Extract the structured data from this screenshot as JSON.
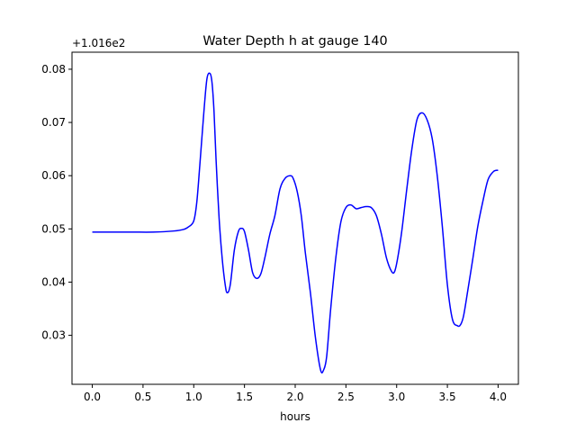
{
  "chart_data": {
    "type": "line",
    "title": "Water Depth h at gauge 140",
    "xlabel": "hours",
    "ylabel": "",
    "offset_label": "+1.016e2",
    "xlim": [
      -0.2,
      4.2
    ],
    "ylim": [
      0.0208,
      0.0832
    ],
    "x_ticks": [
      0.0,
      0.5,
      1.0,
      1.5,
      2.0,
      2.5,
      3.0,
      3.5,
      4.0
    ],
    "x_tick_labels": [
      "0.0",
      "0.5",
      "1.0",
      "1.5",
      "2.0",
      "2.5",
      "3.0",
      "3.5",
      "4.0"
    ],
    "y_ticks": [
      0.03,
      0.04,
      0.05,
      0.06,
      0.07,
      0.08
    ],
    "y_tick_labels": [
      "0.03",
      "0.04",
      "0.05",
      "0.06",
      "0.07",
      "0.08"
    ],
    "grid": false,
    "line_color": "#0000ff",
    "series": [
      {
        "x": [
          0.0,
          0.2,
          0.4,
          0.6,
          0.8,
          0.9,
          0.95,
          1.0,
          1.03,
          1.06,
          1.1,
          1.13,
          1.16,
          1.18,
          1.2,
          1.22,
          1.25,
          1.28,
          1.31,
          1.33,
          1.36,
          1.4,
          1.44,
          1.47,
          1.5,
          1.54,
          1.58,
          1.62,
          1.66,
          1.7,
          1.75,
          1.8,
          1.85,
          1.9,
          1.95,
          1.98,
          2.02,
          2.06,
          2.1,
          2.15,
          2.2,
          2.25,
          2.28,
          2.31,
          2.35,
          2.4,
          2.45,
          2.5,
          2.55,
          2.6,
          2.65,
          2.7,
          2.75,
          2.8,
          2.85,
          2.9,
          2.95,
          2.98,
          3.01,
          3.05,
          3.1,
          3.15,
          3.2,
          3.25,
          3.3,
          3.35,
          3.4,
          3.45,
          3.5,
          3.55,
          3.6,
          3.63,
          3.66,
          3.7,
          3.75,
          3.8,
          3.85,
          3.9,
          3.95,
          3.98,
          4.0
        ],
        "y": [
          0.0494,
          0.0494,
          0.0494,
          0.0494,
          0.0496,
          0.0499,
          0.0504,
          0.0515,
          0.055,
          0.062,
          0.072,
          0.0782,
          0.0792,
          0.0775,
          0.072,
          0.063,
          0.052,
          0.0445,
          0.0395,
          0.038,
          0.0395,
          0.046,
          0.0495,
          0.0501,
          0.0495,
          0.046,
          0.0418,
          0.0407,
          0.0415,
          0.0445,
          0.049,
          0.0525,
          0.0575,
          0.0595,
          0.06,
          0.0595,
          0.057,
          0.0525,
          0.0455,
          0.038,
          0.0295,
          0.0235,
          0.0235,
          0.026,
          0.035,
          0.0445,
          0.0513,
          0.054,
          0.0545,
          0.0538,
          0.054,
          0.0542,
          0.054,
          0.0525,
          0.049,
          0.0445,
          0.042,
          0.042,
          0.0445,
          0.0495,
          0.0575,
          0.065,
          0.0705,
          0.0718,
          0.0705,
          0.067,
          0.06,
          0.0505,
          0.0395,
          0.033,
          0.0318,
          0.032,
          0.0337,
          0.0383,
          0.0443,
          0.0505,
          0.0552,
          0.0592,
          0.0607,
          0.061,
          0.061
        ]
      }
    ]
  }
}
